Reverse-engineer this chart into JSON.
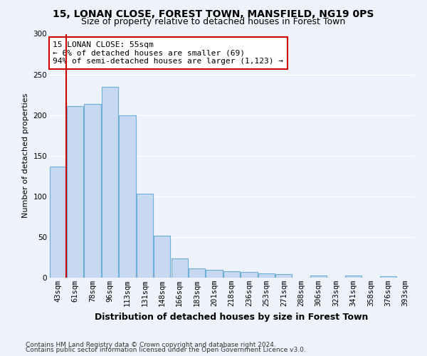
{
  "title1": "15, LONAN CLOSE, FOREST TOWN, MANSFIELD, NG19 0PS",
  "title2": "Size of property relative to detached houses in Forest Town",
  "xlabel": "Distribution of detached houses by size in Forest Town",
  "ylabel": "Number of detached properties",
  "categories": [
    "43sqm",
    "61sqm",
    "78sqm",
    "96sqm",
    "113sqm",
    "131sqm",
    "148sqm",
    "166sqm",
    "183sqm",
    "201sqm",
    "218sqm",
    "236sqm",
    "253sqm",
    "271sqm",
    "288sqm",
    "306sqm",
    "323sqm",
    "341sqm",
    "358sqm",
    "376sqm",
    "393sqm"
  ],
  "values": [
    137,
    211,
    214,
    235,
    200,
    103,
    52,
    24,
    11,
    10,
    8,
    7,
    5,
    4,
    0,
    3,
    0,
    3,
    0,
    2,
    0
  ],
  "bar_color": "#c6d9f0",
  "bar_edge_color": "#6baed6",
  "property_line_color": "#cc0000",
  "annotation_text": "15 LONAN CLOSE: 55sqm\n← 6% of detached houses are smaller (69)\n94% of semi-detached houses are larger (1,123) →",
  "annotation_box_color": "#ffffff",
  "annotation_box_edge_color": "#cc0000",
  "ylim": [
    0,
    300
  ],
  "yticks": [
    0,
    50,
    100,
    150,
    200,
    250,
    300
  ],
  "footer1": "Contains HM Land Registry data © Crown copyright and database right 2024.",
  "footer2": "Contains public sector information licensed under the Open Government Licence v3.0.",
  "background_color": "#eef2fa",
  "grid_color": "#ffffff",
  "title1_fontsize": 10,
  "title2_fontsize": 9,
  "xlabel_fontsize": 9,
  "ylabel_fontsize": 8,
  "tick_fontsize": 7.5,
  "annotation_fontsize": 8,
  "footer_fontsize": 6.5
}
